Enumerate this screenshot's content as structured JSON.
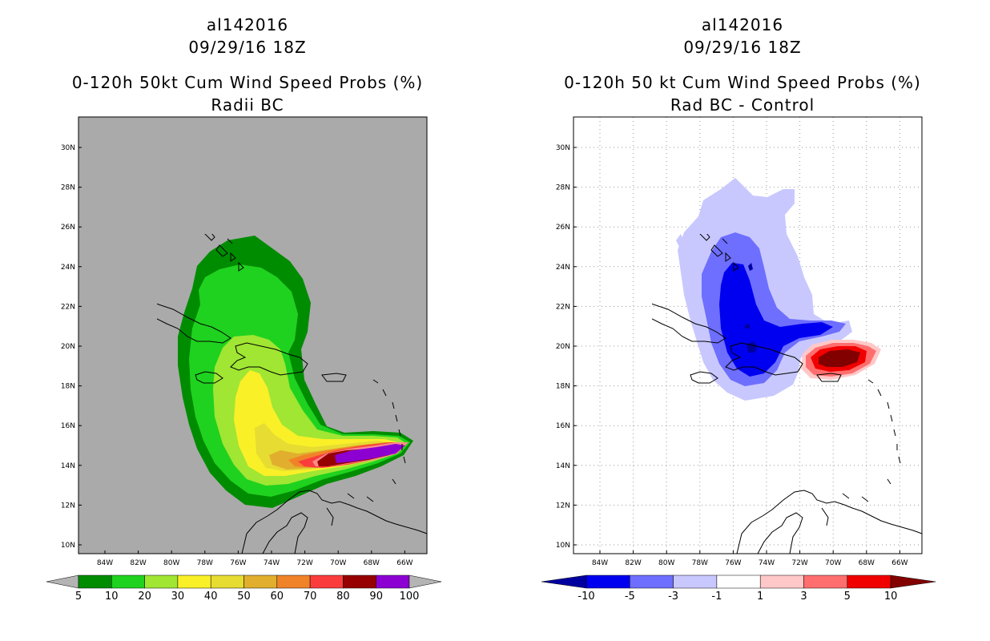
{
  "left": {
    "storm": "al142016",
    "time": "09/29/16 18Z",
    "title": "0-120h 50kt Cum Wind Speed Probs (%)",
    "subtitle": "Radii BC",
    "lat_labels": [
      "30N",
      "28N",
      "26N",
      "24N",
      "22N",
      "20N",
      "18N",
      "16N",
      "14N",
      "12N",
      "10N"
    ],
    "lon_labels": [
      "84W",
      "82W",
      "80W",
      "78W",
      "76W",
      "74W",
      "72W",
      "70W",
      "68W",
      "66W"
    ],
    "colorbar": {
      "labels": [
        "5",
        "10",
        "20",
        "30",
        "40",
        "50",
        "60",
        "70",
        "80",
        "90",
        "100"
      ],
      "colors": [
        "#008c00",
        "#1fd21f",
        "#a0e632",
        "#faf028",
        "#e6dc32",
        "#e1af2d",
        "#f08228",
        "#fa3c3c",
        "#960000",
        "#8c00d2"
      ],
      "end_color": "#b4b4b4"
    }
  },
  "right": {
    "storm": "al142016",
    "time": "09/29/16 18Z",
    "title": "0-120h 50 kt Cum Wind Speed Probs (%)",
    "subtitle": "Rad BC - Control",
    "lat_labels": [
      "30N",
      "28N",
      "26N",
      "24N",
      "22N",
      "20N",
      "18N",
      "16N",
      "14N",
      "12N",
      "10N"
    ],
    "lon_labels": [
      "84W",
      "82W",
      "80W",
      "78W",
      "76W",
      "74W",
      "72W",
      "70W",
      "68W",
      "66W"
    ],
    "colorbar": {
      "labels": [
        "-10",
        "-5",
        "-3",
        "-1",
        "1",
        "3",
        "5",
        "10"
      ],
      "colors": [
        "#0000f0",
        "#6e6eff",
        "#c8c8ff",
        "#ffffff",
        "#ffc8c8",
        "#ff6e6e",
        "#f00000"
      ],
      "low_end_color": "#0000a0",
      "high_end_color": "#820000"
    }
  }
}
